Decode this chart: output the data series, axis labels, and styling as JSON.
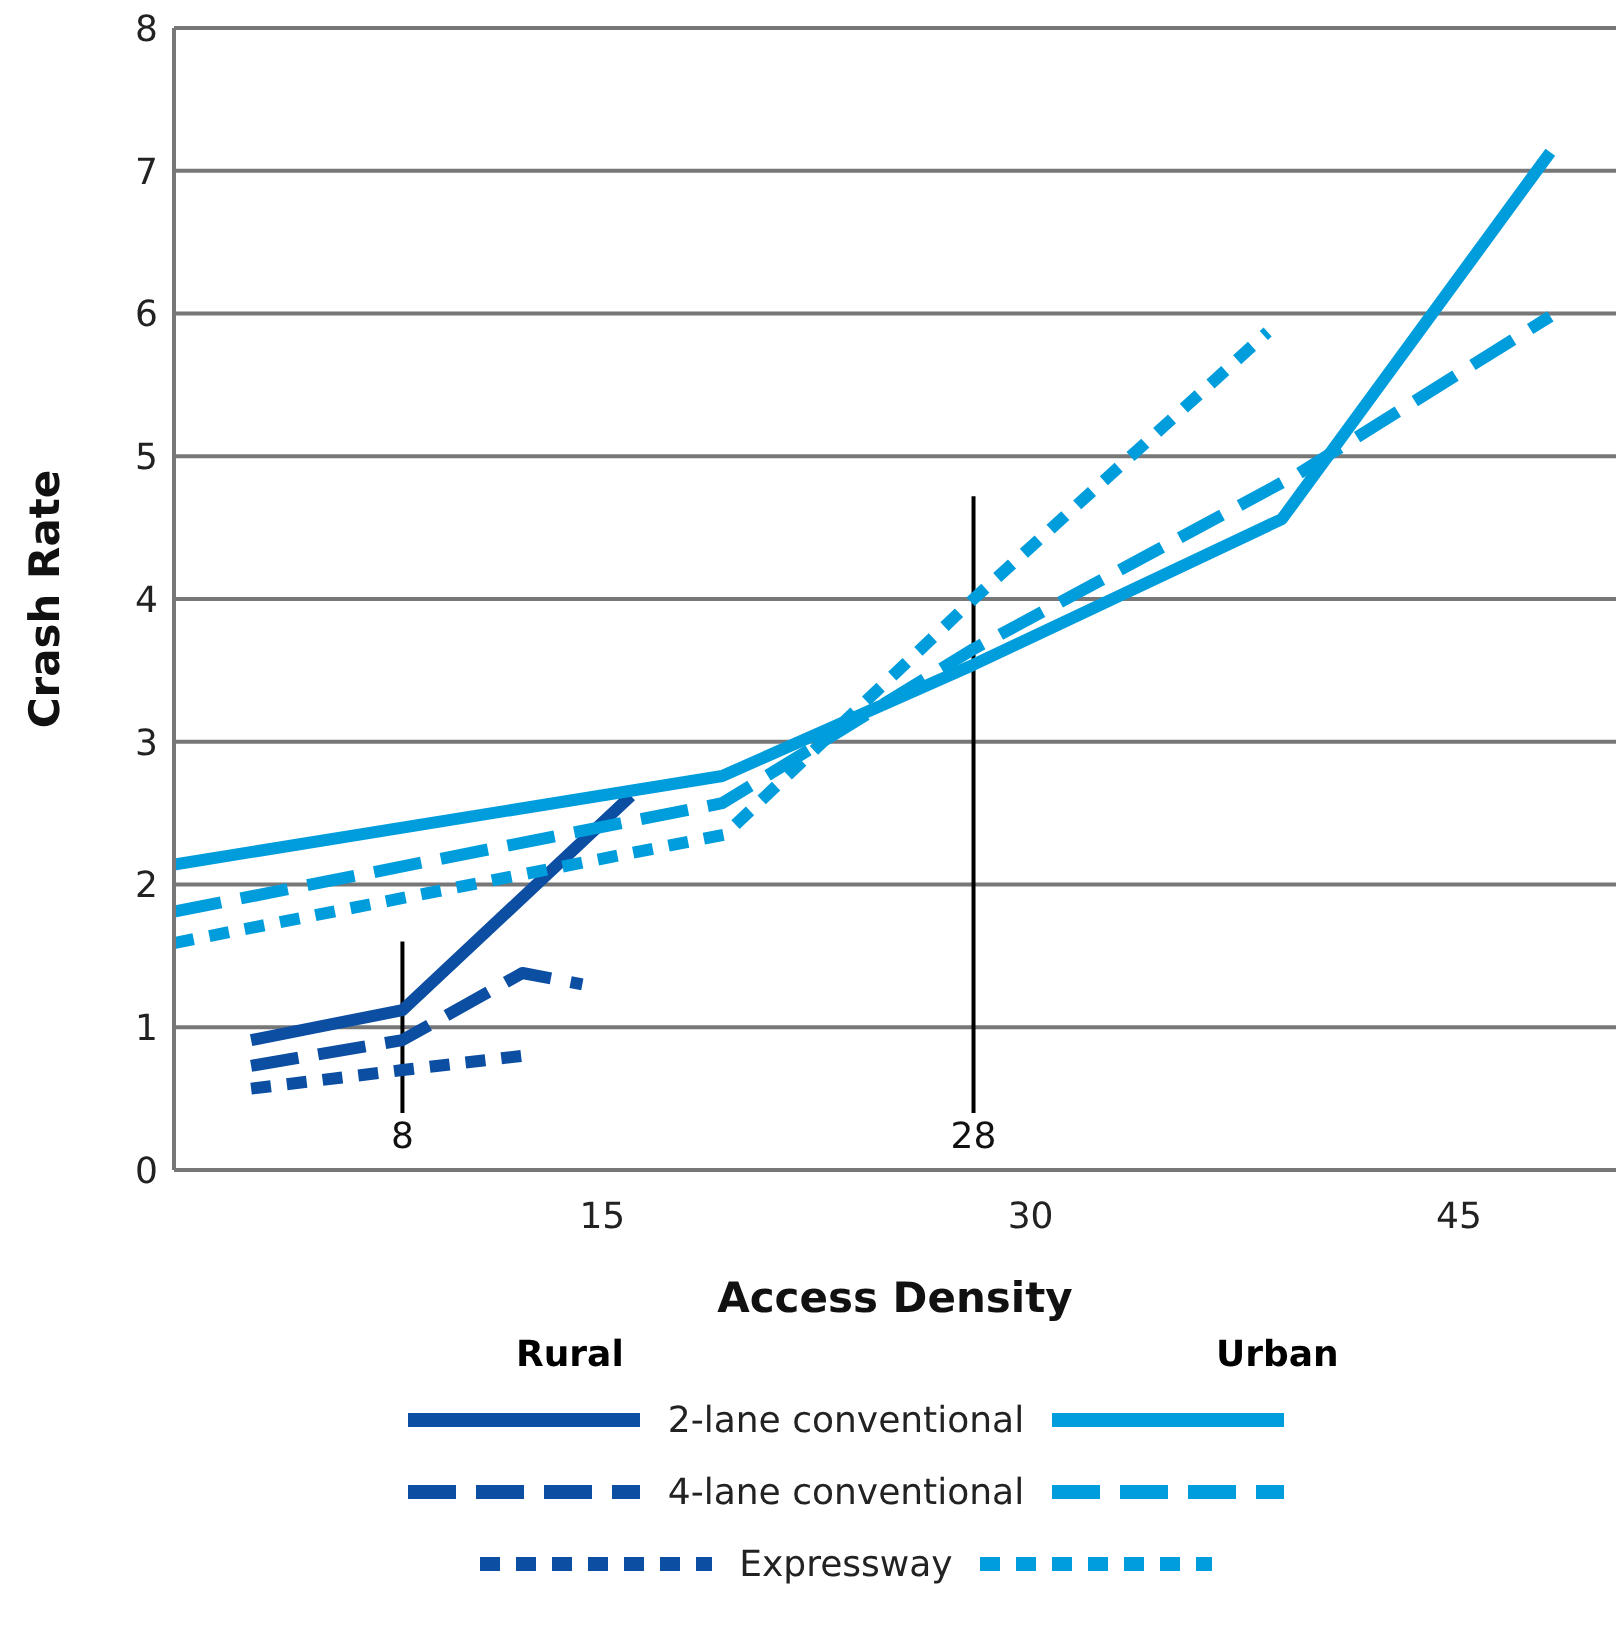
{
  "chart_data": {
    "type": "line",
    "xlabel": "Access Density",
    "ylabel": "Crash Rate",
    "xlim": [
      0,
      50.5
    ],
    "xticks": [
      15,
      30,
      45
    ],
    "ylim": [
      0,
      8
    ],
    "yticks": [
      0,
      1,
      2,
      3,
      4,
      5,
      6,
      7,
      8
    ],
    "grid": "y",
    "legend": "bottom",
    "marker": "none",
    "annotations": [
      "Rural",
      "Urban"
    ],
    "ref_lines": [
      {
        "axis": "x",
        "value": 8,
        "label": "8",
        "color": "#000000"
      },
      {
        "axis": "x",
        "value": 28,
        "label": "28",
        "color": "#000000"
      }
    ],
    "series": [
      {
        "name": "2-lane conventional",
        "color": "#0b4ea2",
        "line_style": "solid",
        "x": [
          2.7,
          8,
          16
        ],
        "values": [
          0.91,
          1.12,
          2.62
        ]
      },
      {
        "name": "4-lane conventional",
        "color": "#0b4ea2",
        "line_style": "dashed",
        "x": [
          2.7,
          8,
          12.2,
          14.3
        ],
        "values": [
          0.73,
          0.91,
          1.38,
          1.3
        ]
      },
      {
        "name": "Expressway",
        "color": "#0b4ea2",
        "line_style": "dotted",
        "x": [
          2.7,
          8,
          12.2
        ],
        "values": [
          0.57,
          0.7,
          0.8
        ]
      },
      {
        "color": "#009ddc",
        "line_style": "solid",
        "x": [
          0,
          19.2,
          28,
          38.8,
          48.2
        ],
        "values": [
          2.14,
          2.76,
          3.54,
          4.56,
          7.13
        ]
      },
      {
        "color": "#009ddc",
        "line_style": "dashed",
        "x": [
          0,
          19.2,
          28,
          39.4,
          48.2
        ],
        "values": [
          1.81,
          2.57,
          3.65,
          4.88,
          5.98
        ]
      },
      {
        "color": "#009ddc",
        "line_style": "dotted",
        "x": [
          0,
          19.3,
          28,
          38.3
        ],
        "values": [
          1.59,
          2.35,
          4.0,
          5.87
        ]
      }
    ]
  }
}
